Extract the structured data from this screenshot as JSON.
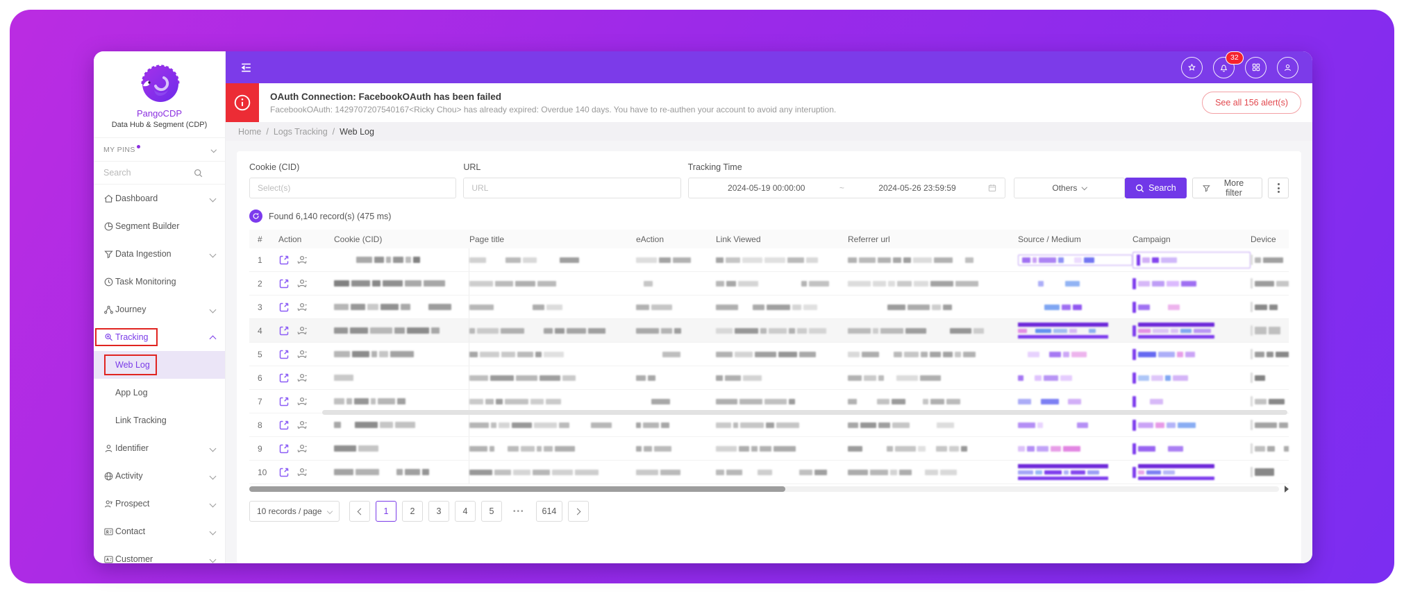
{
  "app": {
    "name": "PangoCDP",
    "tagline": "Data Hub & Segment (CDP)"
  },
  "topbar": {
    "notification_count": "32"
  },
  "sidebar": {
    "pins_label": "MY PINS",
    "search_placeholder": "Search",
    "items": [
      {
        "label": "Dashboard"
      },
      {
        "label": "Segment Builder"
      },
      {
        "label": "Data Ingestion"
      },
      {
        "label": "Task Monitoring"
      },
      {
        "label": "Journey"
      },
      {
        "label": "Tracking"
      },
      {
        "label": "Web Log"
      },
      {
        "label": "App Log"
      },
      {
        "label": "Link Tracking"
      },
      {
        "label": "Identifier"
      },
      {
        "label": "Activity"
      },
      {
        "label": "Prospect"
      },
      {
        "label": "Contact"
      },
      {
        "label": "Customer"
      }
    ]
  },
  "alert": {
    "title": "OAuth Connection: FacebookOAuth has been failed",
    "message": "FacebookOAuth: 1429707207540167<Ricky Chou> has already expired: Overdue 140 days. You have to re-authen your account to avoid any interuption.",
    "see_all_label": "See all 156 alert(s)"
  },
  "breadcrumb": {
    "home": "Home",
    "section": "Logs Tracking",
    "current": "Web Log",
    "separator": "/"
  },
  "filters": {
    "cookie_label": "Cookie (CID)",
    "cookie_placeholder": "Select(s)",
    "url_label": "URL",
    "url_placeholder": "URL",
    "time_label": "Tracking Time",
    "time_from": "2024-05-19 00:00:00",
    "time_separator": "~",
    "time_to": "2024-05-26 23:59:59",
    "others_label": "Others",
    "search_label": "Search",
    "more_filter_label": "More filter"
  },
  "results": {
    "summary": "Found 6,140 record(s) (475 ms)"
  },
  "table": {
    "columns": [
      "#",
      "Action",
      "Cookie (CID)",
      "Page title",
      "eAction",
      "Link Viewed",
      "Referrer url",
      "Source / Medium",
      "Campaign",
      "Device"
    ],
    "rows": [
      {
        "n": "1"
      },
      {
        "n": "2"
      },
      {
        "n": "3"
      },
      {
        "n": "4"
      },
      {
        "n": "5"
      },
      {
        "n": "6"
      },
      {
        "n": "7"
      },
      {
        "n": "8"
      },
      {
        "n": "9"
      },
      {
        "n": "10"
      }
    ]
  },
  "pagination": {
    "page_size": "10 records / page",
    "pages": [
      "1",
      "2",
      "3",
      "4",
      "5"
    ],
    "ellipsis": "•••",
    "last_page": "614",
    "current_page": "1"
  },
  "colors": {
    "accent": "#7c3aed",
    "topbar": "#7c3be9",
    "alert_red": "#ec2c35",
    "annotation_red": "#e02420",
    "badge_red": "#f5222d",
    "gradient_start": "#bb2ce2",
    "gradient_end": "#7b2df1"
  }
}
